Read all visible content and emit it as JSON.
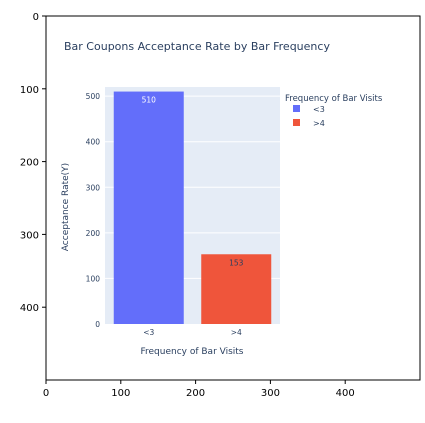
{
  "chart_data": {
    "type": "bar",
    "title": "Bar Coupons Acceptance Rate by Bar Frequency",
    "xlabel": "Frequency of Bar Visits",
    "ylabel": "Acceptance Rate(Y)",
    "categories": [
      "<3",
      ">4"
    ],
    "series": [
      {
        "name": "<3",
        "values": [
          510,
          null
        ],
        "color": "#636EFA",
        "label": "510"
      },
      {
        "name": ">4",
        "values": [
          null,
          153
        ],
        "color": "#EF553B",
        "label": "153"
      }
    ],
    "ylim": [
      0,
      520
    ],
    "yticks": [
      0,
      100,
      200,
      300,
      400,
      500
    ],
    "grid": true,
    "legend": {
      "title": "Frequency of Bar Visits",
      "placement": "top-right"
    }
  },
  "outer_axes": {
    "xticks": [
      0,
      100,
      200,
      300,
      400
    ],
    "yticks": [
      0,
      100,
      200,
      300,
      400
    ],
    "xlim": [
      0,
      500
    ],
    "ylim": [
      500,
      0
    ]
  },
  "colors": {
    "plot_bg": "#E5ECF6",
    "grid": "#FFFFFF",
    "text": "#2A3F5F"
  }
}
